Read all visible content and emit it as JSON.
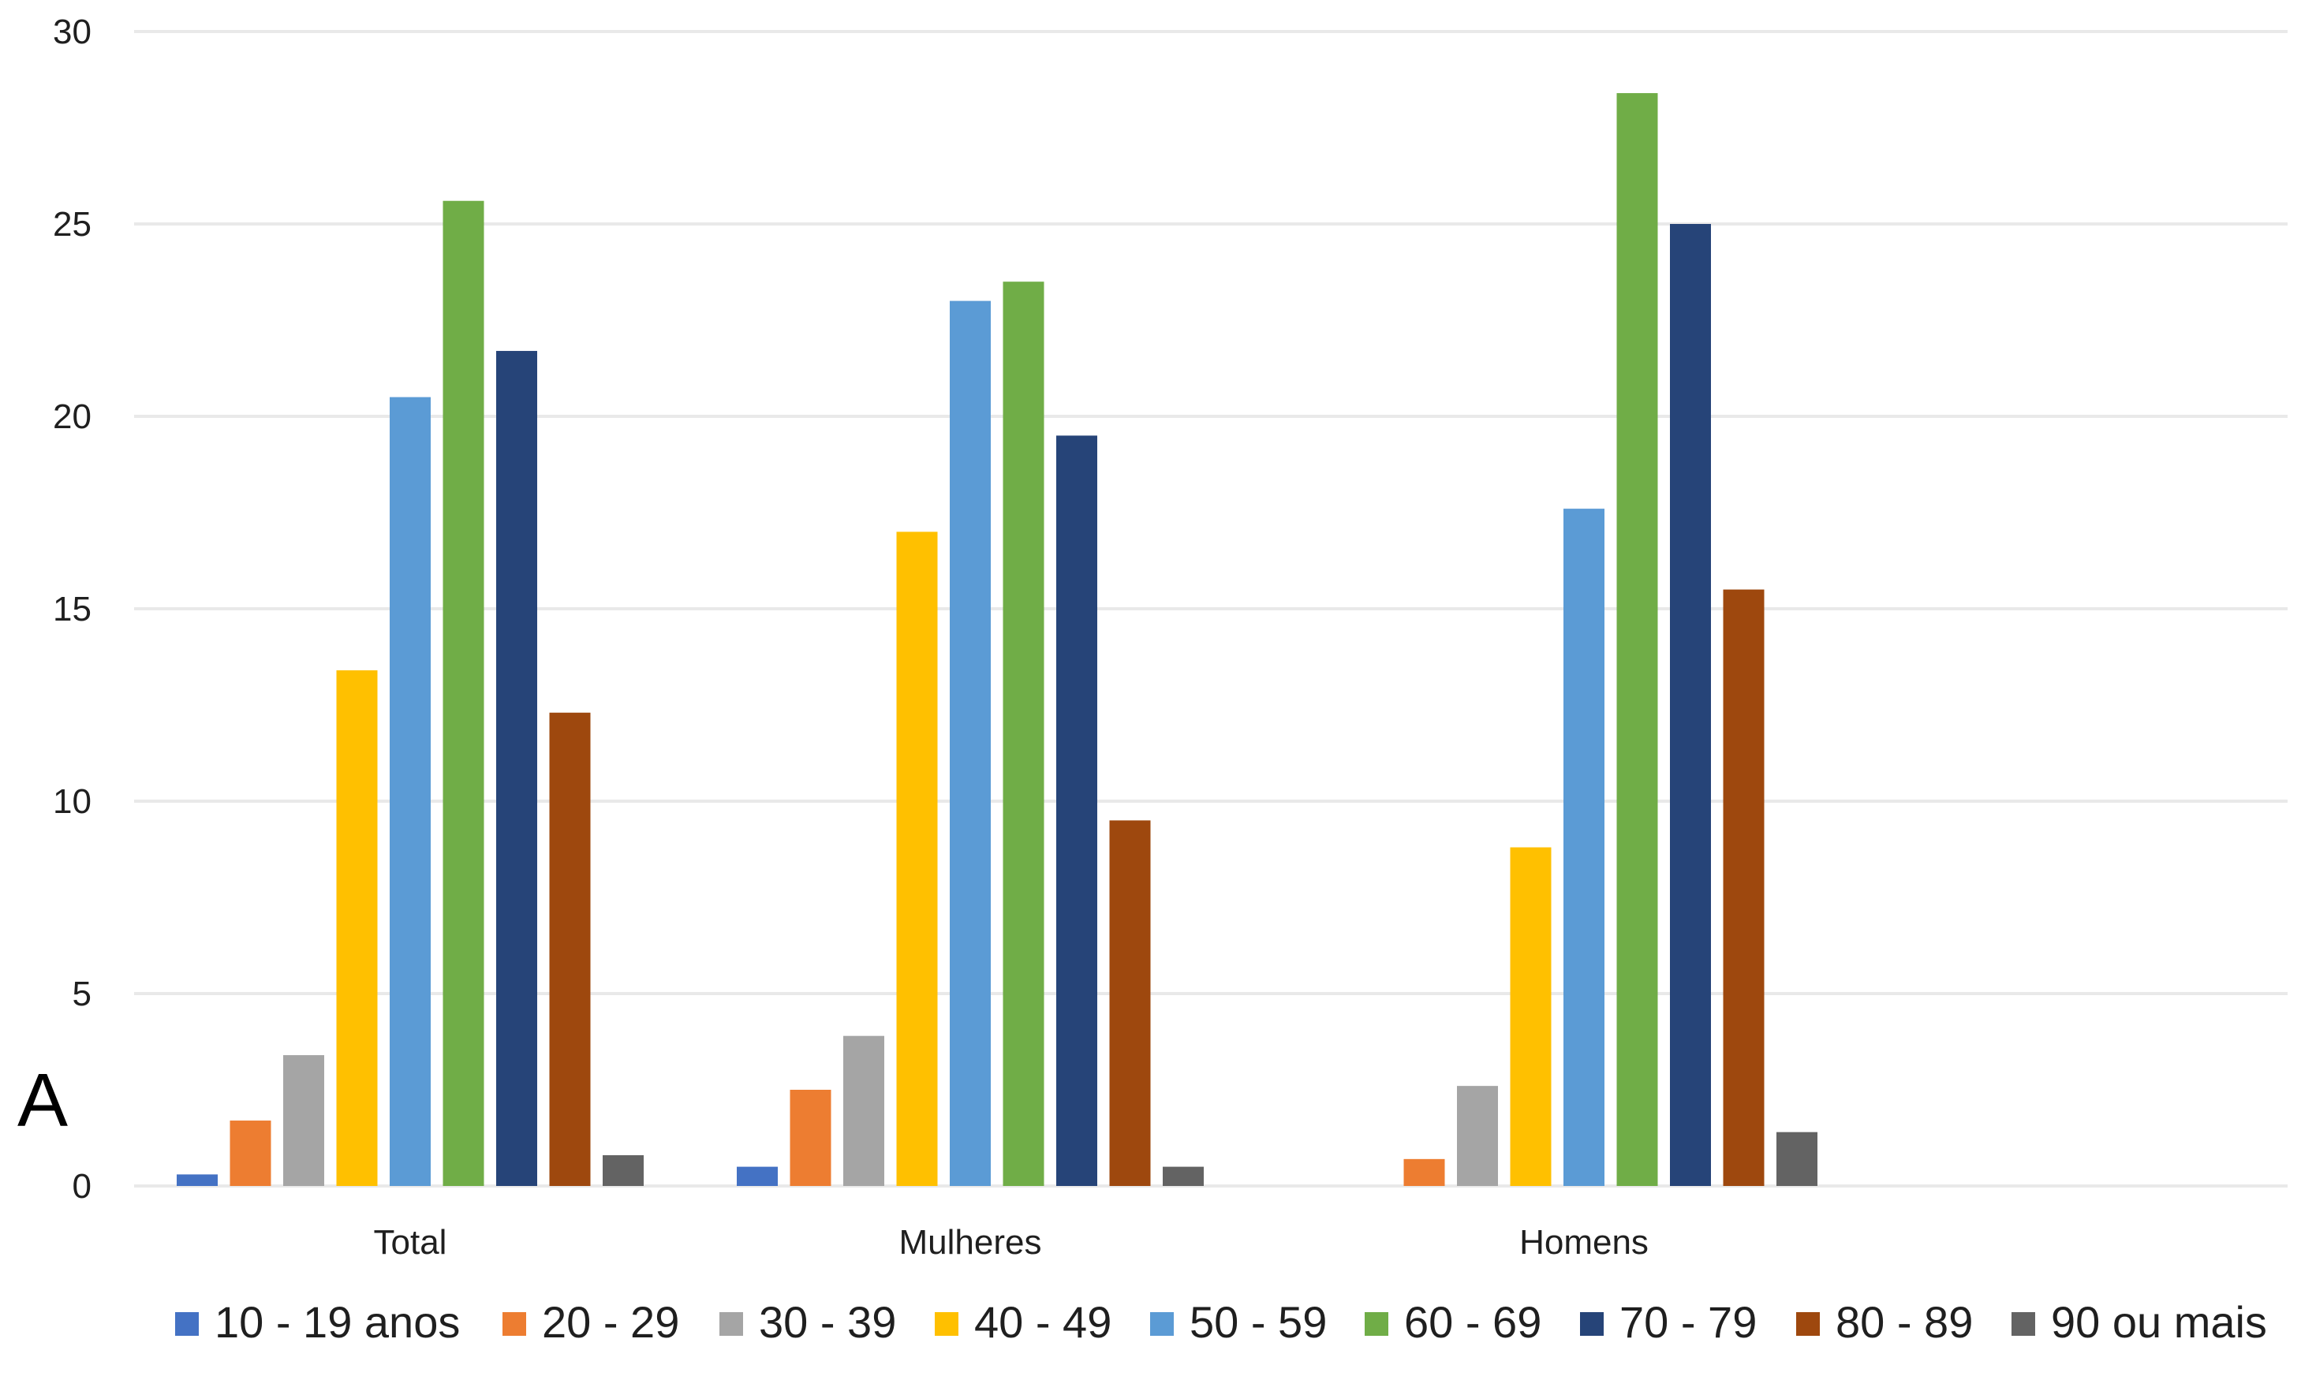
{
  "panel_label": "A",
  "chart_data": {
    "type": "bar",
    "title": "",
    "xlabel": "",
    "ylabel": "",
    "ylim": [
      0,
      30
    ],
    "yticks": [
      0,
      5,
      10,
      15,
      20,
      25,
      30
    ],
    "grid": true,
    "legend_position": "bottom",
    "categories": [
      "Total",
      "Mulheres",
      "Homens"
    ],
    "series": [
      {
        "name": "10 - 19 anos",
        "color": "#4472C4",
        "values": [
          0.3,
          0.5,
          0
        ]
      },
      {
        "name": "20 - 29",
        "color": "#ED7D31",
        "values": [
          1.7,
          2.5,
          0.7
        ]
      },
      {
        "name": "30 - 39",
        "color": "#A5A5A5",
        "values": [
          3.4,
          3.9,
          2.6
        ]
      },
      {
        "name": "40 - 49",
        "color": "#FFC000",
        "values": [
          13.4,
          17.0,
          8.8
        ]
      },
      {
        "name": "50 - 59",
        "color": "#5B9BD5",
        "values": [
          20.5,
          23.0,
          17.6
        ]
      },
      {
        "name": "60 - 69",
        "color": "#70AD47",
        "values": [
          25.6,
          23.5,
          28.4
        ]
      },
      {
        "name": "70 - 79",
        "color": "#264478",
        "values": [
          21.7,
          19.5,
          25.0
        ]
      },
      {
        "name": "80 - 89",
        "color": "#9E480E",
        "values": [
          12.3,
          9.5,
          15.5
        ]
      },
      {
        "name": "90 ou mais",
        "color": "#636363",
        "values": [
          0.8,
          0.5,
          1.4
        ]
      }
    ],
    "colors": {
      "gridline": "#e9e9e9",
      "text": "#1f1f1f"
    }
  }
}
